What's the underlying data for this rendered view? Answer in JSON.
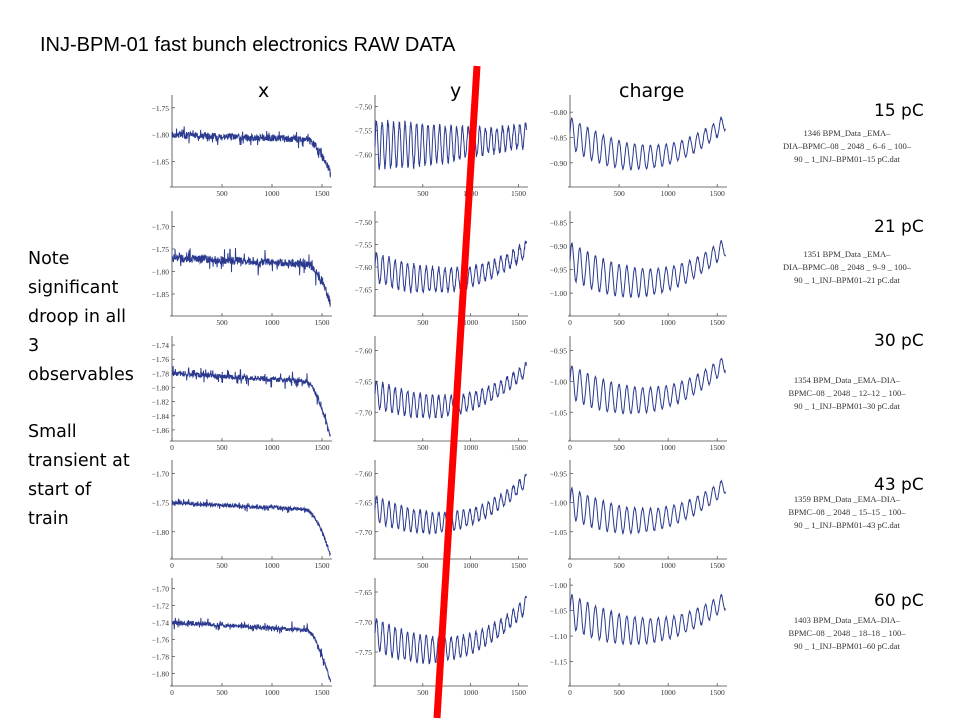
{
  "title": "INJ-BPM-01 fast bunch electronics RAW DATA",
  "column_headers": [
    "x",
    "y",
    "charge"
  ],
  "charges": [
    "15 pC",
    "21 pC",
    "30 pC",
    "43 pC",
    "60 pC"
  ],
  "note": {
    "lines1": [
      "Note",
      "significant",
      "droop in all",
      "3",
      "observables"
    ],
    "lines2": [
      "Small",
      "transient at",
      "start of",
      "train"
    ]
  },
  "filenames": [
    [
      "1346 BPM_Data _EMA–",
      "DIA–BPMC–08 _ 2048 _ 6–6 _ 100–",
      "90 _ 1_INJ–BPM01–15 pC.dat"
    ],
    [
      "1351 BPM_Data _EMA–",
      "DIA–BPMC–08 _ 2048 _ 9–9 _ 100–",
      "90 _ 1_INJ–BPM01–21 pC.dat"
    ],
    [
      "1354 BPM_Data _EMA–DIA–",
      "BPMC–08 _ 2048 _ 12–12 _ 100–",
      "90 _ 1_INJ–BPM01–30 pC.dat"
    ],
    [
      "1359 BPM_Data _EMA–DIA–",
      "BPMC–08 _ 2048 _ 15–15 _ 100–",
      "90 _ 1_INJ–BPM01–43 pC.dat"
    ],
    [
      "1403 BPM_Data _EMA–DIA–",
      "BPMC–08 _ 2048 _ 18–18 _ 100–",
      "90 _ 1_INJ–BPM01–60 pC.dat"
    ]
  ],
  "colors": {
    "trace": "#2b3a8f",
    "marker_line": "#ff0000"
  },
  "chart_data": [
    {
      "type": "line",
      "row": "15 pC",
      "observable": "x",
      "xlim": [
        0,
        1600
      ],
      "xticks": [
        "500",
        "1000",
        "1500"
      ],
      "yticks": [
        "−1.75",
        "−1.80",
        "−1.85"
      ],
      "ylim": [
        -1.89,
        -1.73
      ],
      "y_start": -1.8,
      "y_end": -1.87,
      "curvature": 0,
      "droop": "end",
      "oscillation": 0.02,
      "noise": 0.02,
      "spike": 0.02,
      "period": 0
    },
    {
      "type": "line",
      "row": "15 pC",
      "observable": "y",
      "xlim": [
        0,
        1600
      ],
      "xticks": [
        "500",
        "1000",
        "1500"
      ],
      "yticks": [
        "−7.50",
        "−7.55",
        "−7.60"
      ],
      "ylim": [
        -7.66,
        -7.48
      ],
      "y_start": -7.58,
      "y_end": -7.56,
      "curvature": 0.0,
      "oscillation": 0.09,
      "noise": 0.015,
      "spike": 0.0,
      "period": 60
    },
    {
      "type": "line",
      "row": "15 pC",
      "observable": "charge",
      "xlim": [
        0,
        1600
      ],
      "xticks": [
        "500",
        "1000",
        "1500"
      ],
      "yticks": [
        "−0.80",
        "−0.85",
        "−0.90"
      ],
      "ylim": [
        -0.94,
        -0.77
      ],
      "y_start": -0.84,
      "y_end": -0.82,
      "curvature": 0.1,
      "oscillation": 0.06,
      "noise": 0.005,
      "spike": 0,
      "period": 80
    },
    {
      "type": "line",
      "row": "21 pC",
      "observable": "x",
      "xlim": [
        0,
        1600
      ],
      "xticks": [
        "500",
        "1000",
        "1500"
      ],
      "yticks": [
        "−1.70",
        "−1.75",
        "−1.80",
        "−1.85"
      ],
      "ylim": [
        -1.89,
        -1.67
      ],
      "y_start": -1.77,
      "y_end": -1.87,
      "curvature": 0,
      "droop": "end",
      "oscillation": 0.02,
      "noise": 0.02,
      "spike": 0.03,
      "period": 0
    },
    {
      "type": "line",
      "row": "21 pC",
      "observable": "y",
      "xlim": [
        0,
        1600
      ],
      "xticks": [
        "500",
        "1000",
        "1500"
      ],
      "yticks": [
        "−7.50",
        "−7.55",
        "−7.60",
        "−7.65"
      ],
      "ylim": [
        -7.7,
        -7.48
      ],
      "y_start": -7.6,
      "y_end": -7.56,
      "curvature": 0.05,
      "oscillation": 0.05,
      "noise": 0.01,
      "spike": 0,
      "period": 65
    },
    {
      "type": "line",
      "row": "21 pC",
      "observable": "charge",
      "xlim": [
        0,
        1600
      ],
      "xticks": [
        "0",
        "500",
        "1000",
        "1500"
      ],
      "yticks": [
        "−0.85",
        "−0.90",
        "−0.95",
        "−1.00"
      ],
      "ylim": [
        -1.04,
        -0.83
      ],
      "y_start": -0.93,
      "y_end": -0.9,
      "curvature": 0.08,
      "oscillation": 0.06,
      "noise": 0.005,
      "spike": 0,
      "period": 80
    },
    {
      "type": "line",
      "row": "30 pC",
      "observable": "x",
      "xlim": [
        0,
        1600
      ],
      "xticks": [
        "0",
        "500",
        "1000",
        "1500"
      ],
      "yticks": [
        "−1.74",
        "−1.76",
        "−1.78",
        "−1.80",
        "−1.82",
        "−1.84",
        "−1.86"
      ],
      "ylim": [
        -1.87,
        -1.73
      ],
      "y_start": -1.78,
      "y_end": -1.87,
      "curvature": 0,
      "droop": "end",
      "oscillation": 0.01,
      "noise": 0.012,
      "spike": 0.02,
      "period": 0
    },
    {
      "type": "line",
      "row": "30 pC",
      "observable": "y",
      "xlim": [
        0,
        1600
      ],
      "xticks": [
        "500",
        "1000",
        "1500"
      ],
      "yticks": [
        "−7.60",
        "−7.65",
        "−7.70"
      ],
      "ylim": [
        -7.74,
        -7.58
      ],
      "y_start": -7.67,
      "y_end": -7.63,
      "curvature": 0.05,
      "oscillation": 0.045,
      "noise": 0.008,
      "spike": 0,
      "period": 65
    },
    {
      "type": "line",
      "row": "30 pC",
      "observable": "charge",
      "xlim": [
        0,
        1600
      ],
      "xticks": [
        "0",
        "500",
        "1000",
        "1500"
      ],
      "yticks": [
        "−0.95",
        "−1.00",
        "−1.05"
      ],
      "ylim": [
        -1.09,
        -0.93
      ],
      "y_start": -1.0,
      "y_end": -0.97,
      "curvature": 0.07,
      "oscillation": 0.055,
      "noise": 0.004,
      "spike": 0,
      "period": 80
    },
    {
      "type": "line",
      "row": "43 pC",
      "observable": "x",
      "xlim": [
        0,
        1600
      ],
      "xticks": [
        "0",
        "500",
        "1000",
        "1500"
      ],
      "yticks": [
        "−1.70",
        "−1.75",
        "−1.80"
      ],
      "ylim": [
        -1.84,
        -1.68
      ],
      "y_start": -1.75,
      "y_end": -1.84,
      "curvature": 0,
      "droop": "end",
      "oscillation": 0.01,
      "noise": 0.01,
      "spike": 0.01,
      "period": 0
    },
    {
      "type": "line",
      "row": "43 pC",
      "observable": "y",
      "xlim": [
        0,
        1600
      ],
      "xticks": [
        "500",
        "1000",
        "1500"
      ],
      "yticks": [
        "−7.60",
        "−7.65",
        "−7.70"
      ],
      "ylim": [
        -7.74,
        -7.58
      ],
      "y_start": -7.66,
      "y_end": -7.61,
      "curvature": 0.06,
      "oscillation": 0.045,
      "noise": 0.008,
      "spike": 0,
      "period": 65
    },
    {
      "type": "line",
      "row": "43 pC",
      "observable": "charge",
      "xlim": [
        0,
        1600
      ],
      "xticks": [
        "0",
        "500",
        "1000",
        "1500"
      ],
      "yticks": [
        "−0.95",
        "−1.00",
        "−1.05"
      ],
      "ylim": [
        -1.09,
        -0.93
      ],
      "y_start": -1.0,
      "y_end": -0.97,
      "curvature": 0.07,
      "oscillation": 0.055,
      "noise": 0.004,
      "spike": 0,
      "period": 80
    },
    {
      "type": "line",
      "row": "60 pC",
      "observable": "x",
      "xlim": [
        0,
        1600
      ],
      "xticks": [
        "0",
        "500",
        "1000",
        "1500"
      ],
      "yticks": [
        "−1.70",
        "−1.72",
        "−1.74",
        "−1.76",
        "−1.78",
        "−1.80"
      ],
      "ylim": [
        -1.81,
        -1.69
      ],
      "y_start": -1.74,
      "y_end": -1.81,
      "curvature": 0,
      "droop": "end",
      "oscillation": 0.01,
      "noise": 0.01,
      "spike": 0.015,
      "period": 0
    },
    {
      "type": "line",
      "row": "60 pC",
      "observable": "y",
      "xlim": [
        0,
        1600
      ],
      "xticks": [
        "500",
        "1000",
        "1500"
      ],
      "yticks": [
        "−7.65",
        "−7.70",
        "−7.75"
      ],
      "ylim": [
        -7.8,
        -7.63
      ],
      "y_start": -7.72,
      "y_end": -7.67,
      "curvature": 0.06,
      "oscillation": 0.05,
      "noise": 0.008,
      "spike": 0,
      "period": 65
    },
    {
      "type": "line",
      "row": "60 pC",
      "observable": "charge",
      "xlim": [
        0,
        1600
      ],
      "xticks": [
        "0",
        "500",
        "1000",
        "1500"
      ],
      "yticks": [
        "−1.00",
        "−1.05",
        "−1.10",
        "−1.15"
      ],
      "ylim": [
        -1.19,
        -0.99
      ],
      "y_start": -1.05,
      "y_end": -1.03,
      "curvature": 0.07,
      "oscillation": 0.055,
      "noise": 0.004,
      "spike": 0,
      "period": 80
    }
  ]
}
